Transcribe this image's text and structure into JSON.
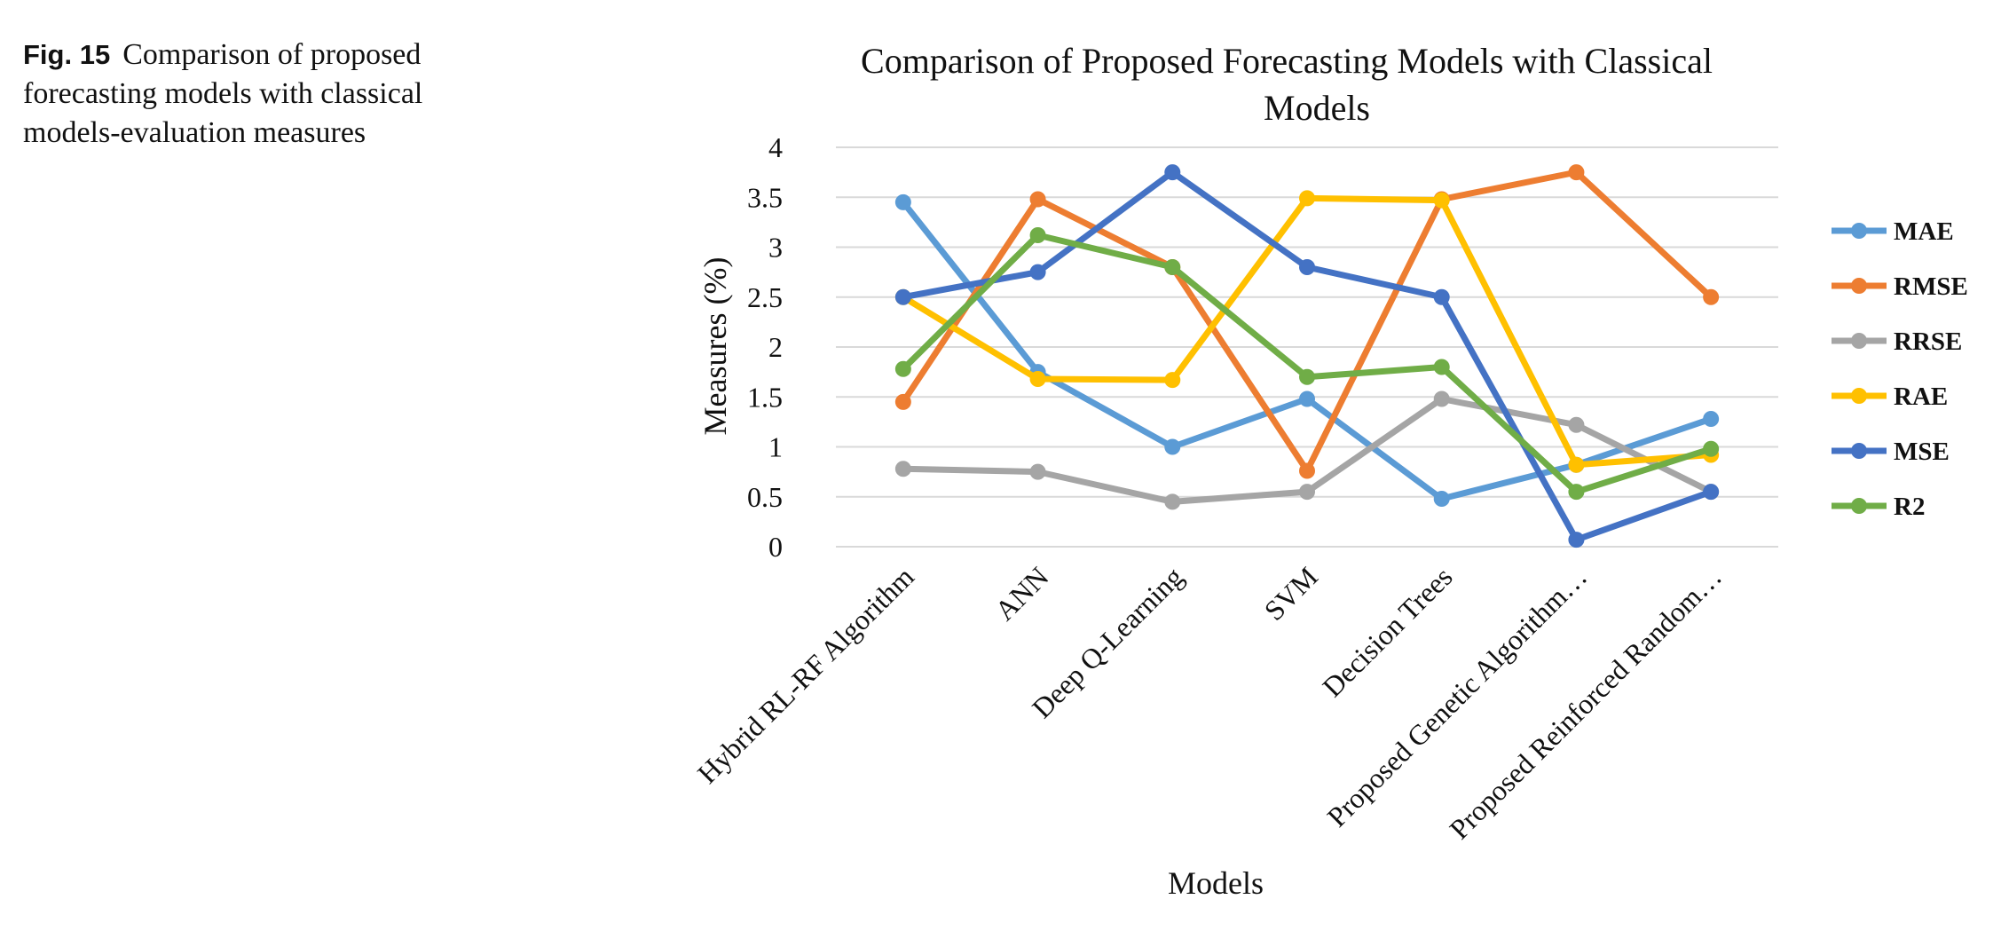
{
  "caption": {
    "fig_label": "Fig. 15",
    "text": "Comparison of proposed forecasting models with classical models-evaluation measures"
  },
  "chart_data": {
    "type": "line",
    "title_line1": "Comparison of Proposed Forecasting Models with Classical",
    "title_line2": "Models",
    "xlabel": "Models",
    "ylabel": "Measures (%)",
    "ylim": [
      0,
      4
    ],
    "yticks": [
      "0",
      "0.5",
      "1",
      "1.5",
      "2",
      "2.5",
      "3",
      "3.5",
      "4"
    ],
    "grid": "horizontal",
    "legend_position": "right",
    "categories": [
      "Hybrid RL-RF Algorithm",
      "ANN",
      "Deep Q-Learning",
      "SVM",
      "Decision Trees",
      "Proposed Genetic Algorithm…",
      "Proposed Reinforced Random…"
    ],
    "series": [
      {
        "name": "MAE",
        "color": "#5b9bd5",
        "values": [
          3.45,
          1.75,
          1.0,
          1.48,
          0.48,
          0.82,
          1.28
        ]
      },
      {
        "name": "RMSE",
        "color": "#ed7d31",
        "values": [
          1.45,
          3.48,
          2.8,
          0.76,
          3.48,
          3.75,
          2.5
        ]
      },
      {
        "name": "RRSE",
        "color": "#a5a5a5",
        "values": [
          0.78,
          0.75,
          0.45,
          0.55,
          1.48,
          1.22,
          0.55
        ]
      },
      {
        "name": "RAE",
        "color": "#ffc000",
        "values": [
          2.5,
          1.68,
          1.67,
          3.49,
          3.47,
          0.82,
          0.92
        ]
      },
      {
        "name": "MSE",
        "color": "#4472c4",
        "values": [
          2.5,
          2.75,
          3.75,
          2.8,
          2.5,
          0.07,
          0.55
        ]
      },
      {
        "name": "R2",
        "color": "#70ad47",
        "values": [
          1.78,
          3.12,
          2.8,
          1.7,
          1.8,
          0.55,
          0.98
        ]
      }
    ]
  }
}
